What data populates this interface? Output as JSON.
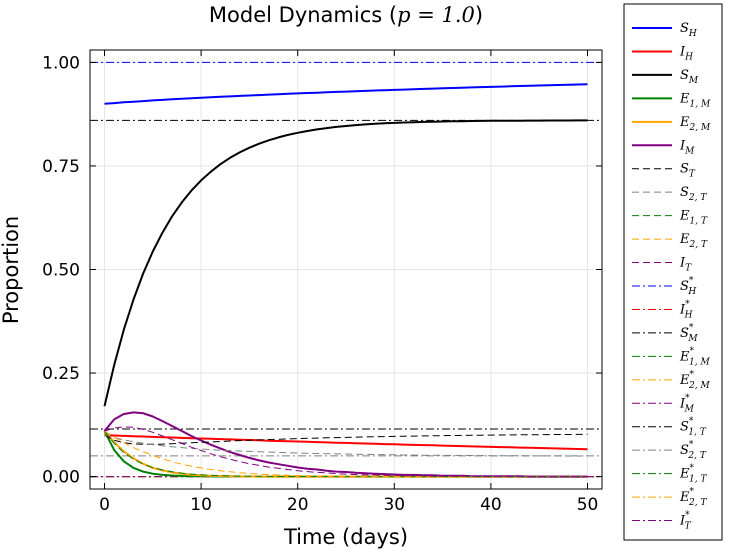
{
  "chart_data": {
    "type": "line",
    "title_prefix": "Model Dynamics (",
    "title_param": "p = 1.0",
    "title_suffix": ")",
    "xlabel": "Time (days)",
    "ylabel": "Proportion",
    "xlim": [
      -1.5,
      51.5
    ],
    "ylim": [
      -0.03,
      1.03
    ],
    "xticks": [
      0,
      10,
      20,
      30,
      40,
      50
    ],
    "xtick_labels": [
      "0",
      "10",
      "20",
      "30",
      "40",
      "50"
    ],
    "yticks": [
      0,
      0.25,
      0.5,
      0.75,
      1.0
    ],
    "ytick_labels": [
      "0.00",
      "0.25",
      "0.50",
      "0.75",
      "1.00"
    ],
    "grid": true,
    "legend_position": "outside-right",
    "x": [
      0,
      1,
      2,
      3,
      4,
      5,
      6,
      7,
      8,
      9,
      10,
      11,
      12,
      13,
      14,
      15,
      16,
      17,
      18,
      19,
      20,
      21,
      22,
      23,
      24,
      25,
      26,
      27,
      28,
      29,
      30,
      31,
      32,
      33,
      34,
      35,
      36,
      37,
      38,
      39,
      40,
      41,
      42,
      43,
      44,
      45,
      46,
      47,
      48,
      49,
      50
    ],
    "series": [
      {
        "name": "S",
        "sub": "H",
        "sup": "",
        "color": "#0000ff",
        "style": "solid",
        "values": [
          0.9,
          0.9019,
          0.9036,
          0.9052,
          0.9067,
          0.9082,
          0.9096,
          0.9109,
          0.9122,
          0.9134,
          0.9146,
          0.9158,
          0.9169,
          0.918,
          0.9191,
          0.9202,
          0.9212,
          0.9222,
          0.9232,
          0.9242,
          0.9251,
          0.9261,
          0.927,
          0.9279,
          0.9288,
          0.9296,
          0.9305,
          0.9313,
          0.9321,
          0.9329,
          0.9337,
          0.9345,
          0.9353,
          0.936,
          0.9368,
          0.9375,
          0.9382,
          0.9389,
          0.9396,
          0.9403,
          0.941,
          0.9417,
          0.9423,
          0.943,
          0.9436,
          0.9442,
          0.9448,
          0.9454,
          0.946,
          0.9466,
          0.9472
        ]
      },
      {
        "name": "I",
        "sub": "H",
        "sup": "",
        "color": "#ff0000",
        "style": "solid",
        "values": [
          0.1,
          0.0991,
          0.0983,
          0.0975,
          0.0967,
          0.0959,
          0.0951,
          0.0943,
          0.0935,
          0.0927,
          0.092,
          0.0912,
          0.0904,
          0.0897,
          0.0889,
          0.0882,
          0.0875,
          0.0867,
          0.086,
          0.0853,
          0.0846,
          0.0839,
          0.0832,
          0.0825,
          0.0818,
          0.0812,
          0.0805,
          0.0798,
          0.0792,
          0.0785,
          0.0779,
          0.0772,
          0.0766,
          0.076,
          0.0754,
          0.0747,
          0.0741,
          0.0735,
          0.0729,
          0.0723,
          0.0717,
          0.0711,
          0.0706,
          0.07,
          0.0694,
          0.0689,
          0.0683,
          0.0678,
          0.0672,
          0.0667,
          0.0661
        ]
      },
      {
        "name": "S",
        "sub": "M",
        "sup": "",
        "color": "#000000",
        "style": "solid",
        "values": [
          0.17,
          0.2695,
          0.3547,
          0.4276,
          0.49,
          0.5435,
          0.5892,
          0.6284,
          0.6619,
          0.6906,
          0.7152,
          0.7362,
          0.7542,
          0.7696,
          0.7828,
          0.794,
          0.8037,
          0.8119,
          0.819,
          0.825,
          0.8301,
          0.8345,
          0.8383,
          0.8415,
          0.8442,
          0.8466,
          0.8486,
          0.8503,
          0.8517,
          0.853,
          0.854,
          0.8549,
          0.8557,
          0.8564,
          0.8569,
          0.8574,
          0.8578,
          0.8582,
          0.8585,
          0.8587,
          0.859,
          0.8591,
          0.8593,
          0.8594,
          0.8595,
          0.8596,
          0.8597,
          0.8598,
          0.8598,
          0.8599,
          0.8599
        ]
      },
      {
        "name": "E",
        "sub": "1, M",
        "sup": "",
        "color": "#008000",
        "style": "solid",
        "values": [
          0.11,
          0.064,
          0.037,
          0.021,
          0.012,
          0.007,
          0.004,
          0.0025,
          0.0015,
          0.001,
          0.0006,
          0.0004,
          0.0002,
          0.0001,
          0.0001,
          0.0001,
          0,
          0,
          0,
          0,
          0,
          0,
          0,
          0,
          0,
          0,
          0,
          0,
          0,
          0,
          0,
          0,
          0,
          0,
          0,
          0,
          0,
          0,
          0,
          0,
          0,
          0,
          0,
          0,
          0,
          0,
          0,
          0,
          0,
          0,
          0
        ]
      },
      {
        "name": "E",
        "sub": "2, M",
        "sup": "",
        "color": "#ffa500",
        "style": "solid",
        "values": [
          0.11,
          0.083,
          0.061,
          0.044,
          0.031,
          0.021,
          0.015,
          0.01,
          0.0068,
          0.0045,
          0.003,
          0.002,
          0.0013,
          0.0008,
          0.0005,
          0.0003,
          0.0002,
          0.0001,
          0.0001,
          0,
          0,
          0,
          0,
          0,
          0,
          0,
          0,
          0,
          0,
          0,
          0,
          0,
          0,
          0,
          0,
          0,
          0,
          0,
          0,
          0,
          0,
          0,
          0,
          0,
          0,
          0,
          0,
          0,
          0,
          0,
          0
        ]
      },
      {
        "name": "I",
        "sub": "M",
        "sup": "",
        "color": "#800080",
        "style": "solid",
        "values": [
          0.11,
          0.138,
          0.151,
          0.155,
          0.153,
          0.145,
          0.134,
          0.122,
          0.11,
          0.098,
          0.087,
          0.077,
          0.068,
          0.059,
          0.052,
          0.045,
          0.039,
          0.034,
          0.03,
          0.026,
          0.022,
          0.019,
          0.017,
          0.014,
          0.012,
          0.011,
          0.009,
          0.008,
          0.007,
          0.006,
          0.005,
          0.004,
          0.004,
          0.003,
          0.003,
          0.002,
          0.002,
          0.002,
          0.001,
          0.001,
          0.001,
          0.001,
          0.001,
          0.001,
          0,
          0,
          0,
          0,
          0,
          0,
          0
        ]
      },
      {
        "name": "S",
        "sub": "T",
        "sup": "",
        "color": "#000000",
        "style": "dash",
        "values": [
          0.1,
          0.0878,
          0.0816,
          0.0788,
          0.0779,
          0.0779,
          0.0785,
          0.0794,
          0.0804,
          0.0815,
          0.0826,
          0.0837,
          0.0848,
          0.0858,
          0.0868,
          0.0877,
          0.0886,
          0.0895,
          0.0903,
          0.091,
          0.0917,
          0.0924,
          0.093,
          0.0936,
          0.0942,
          0.0947,
          0.0952,
          0.0957,
          0.0962,
          0.0966,
          0.097,
          0.0974,
          0.0978,
          0.0981,
          0.0985,
          0.0988,
          0.0991,
          0.0994,
          0.0996,
          0.0999,
          0.1001,
          0.1004,
          0.1006,
          0.1008,
          0.101,
          0.1012,
          0.1014,
          0.1016,
          0.1017,
          0.1019,
          0.102
        ]
      },
      {
        "name": "S",
        "sub": "2, T",
        "sup": "",
        "color": "#808080",
        "style": "dash",
        "values": [
          0.1,
          0.0938,
          0.0886,
          0.0842,
          0.0804,
          0.0772,
          0.0744,
          0.072,
          0.0699,
          0.0681,
          0.0665,
          0.0651,
          0.0638,
          0.0627,
          0.0617,
          0.0607,
          0.0599,
          0.0591,
          0.0583,
          0.0576,
          0.057,
          0.0564,
          0.0558,
          0.0553,
          0.0548,
          0.0544,
          0.054,
          0.0536,
          0.0532,
          0.0528,
          0.0525,
          0.0522,
          0.052,
          0.0517,
          0.0515,
          0.0513,
          0.0511,
          0.0509,
          0.0508,
          0.0506,
          0.0505,
          0.0504,
          0.0503,
          0.0502,
          0.0501,
          0.05,
          0.0499,
          0.0499,
          0.0498,
          0.0497,
          0.0497
        ]
      },
      {
        "name": "E",
        "sub": "1, T",
        "sup": "",
        "color": "#008000",
        "style": "dash",
        "values": [
          0.11,
          0.08,
          0.058,
          0.042,
          0.03,
          0.022,
          0.016,
          0.0115,
          0.0083,
          0.006,
          0.0043,
          0.0031,
          0.0022,
          0.0016,
          0.0012,
          0.0008,
          0.0006,
          0.0004,
          0.0003,
          0.0002,
          0.0002,
          0.0001,
          0.0001,
          0.0001,
          0,
          0,
          0,
          0,
          0,
          0,
          0,
          0,
          0,
          0,
          0,
          0,
          0,
          0,
          0,
          0,
          0,
          0,
          0,
          0,
          0,
          0,
          0,
          0,
          0,
          0,
          0
        ]
      },
      {
        "name": "E",
        "sub": "2, T",
        "sup": "",
        "color": "#ffa500",
        "style": "dash",
        "values": [
          0.11,
          0.095,
          0.082,
          0.07,
          0.06,
          0.051,
          0.043,
          0.036,
          0.03,
          0.025,
          0.021,
          0.017,
          0.014,
          0.0115,
          0.0093,
          0.0075,
          0.006,
          0.0048,
          0.0038,
          0.003,
          0.0024,
          0.0019,
          0.0015,
          0.0011,
          0.0009,
          0.0007,
          0.0005,
          0.0004,
          0.0003,
          0.0002,
          0.0002,
          0.0001,
          0.0001,
          0.0001,
          0,
          0,
          0,
          0,
          0,
          0,
          0,
          0,
          0,
          0,
          0,
          0,
          0,
          0,
          0,
          0,
          0
        ]
      },
      {
        "name": "I",
        "sub": "T",
        "sup": "",
        "color": "#800080",
        "style": "dash",
        "values": [
          0.11,
          0.117,
          0.12,
          0.119,
          0.114,
          0.107,
          0.098,
          0.089,
          0.08,
          0.071,
          0.063,
          0.055,
          0.048,
          0.042,
          0.036,
          0.031,
          0.027,
          0.023,
          0.02,
          0.017,
          0.014,
          0.012,
          0.01,
          0.009,
          0.007,
          0.006,
          0.005,
          0.004,
          0.004,
          0.003,
          0.003,
          0.002,
          0.002,
          0.002,
          0.001,
          0.001,
          0.001,
          0.001,
          0.001,
          0,
          0,
          0,
          0,
          0,
          0,
          0,
          0,
          0,
          0,
          0,
          0
        ]
      },
      {
        "name": "S",
        "sub": "H",
        "sup": "*",
        "color": "#0000ff",
        "style": "dashdot",
        "constant": 1.0
      },
      {
        "name": "I",
        "sub": "H",
        "sup": "*",
        "color": "#ff0000",
        "style": "dashdot",
        "constant": 0.0
      },
      {
        "name": "S",
        "sub": "M",
        "sup": "*",
        "color": "#000000",
        "style": "dashdot",
        "constant": 0.86
      },
      {
        "name": "E",
        "sub": "1, M",
        "sup": "*",
        "color": "#008000",
        "style": "dashdot",
        "constant": 0.0
      },
      {
        "name": "E",
        "sub": "2, M",
        "sup": "*",
        "color": "#ffa500",
        "style": "dashdot",
        "constant": 0.0
      },
      {
        "name": "I",
        "sub": "M",
        "sup": "*",
        "color": "#800080",
        "style": "dashdot",
        "constant": 0.0
      },
      {
        "name": "S",
        "sub": "1, T",
        "sup": "*",
        "color": "#000000",
        "style": "dashdot",
        "constant": 0.115
      },
      {
        "name": "S",
        "sub": "2, T",
        "sup": "*",
        "color": "#808080",
        "style": "dashdot",
        "constant": 0.05
      },
      {
        "name": "E",
        "sub": "1, T",
        "sup": "*",
        "color": "#008000",
        "style": "dashdot",
        "constant": 0.0
      },
      {
        "name": "E",
        "sub": "2, T",
        "sup": "*",
        "color": "#ffa500",
        "style": "dashdot",
        "constant": 0.0
      },
      {
        "name": "I",
        "sub": "T",
        "sup": "*",
        "color": "#800080",
        "style": "dashdot",
        "constant": 0.0
      }
    ]
  }
}
